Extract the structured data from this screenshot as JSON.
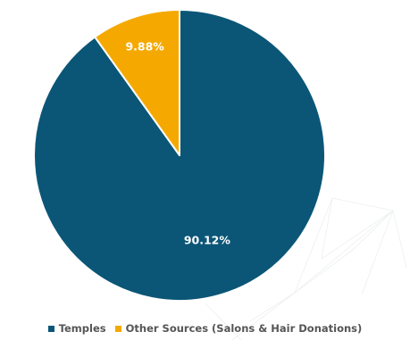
{
  "chart_data": {
    "type": "pie",
    "categories": [
      "Temples",
      "Other Sources (Salons & Hair Donations)"
    ],
    "values": [
      90.12,
      9.88
    ],
    "data_labels": [
      "90.12%",
      "9.88%"
    ],
    "colors": [
      "#0b5677",
      "#f5a900"
    ],
    "legend_position": "bottom",
    "title": ""
  }
}
